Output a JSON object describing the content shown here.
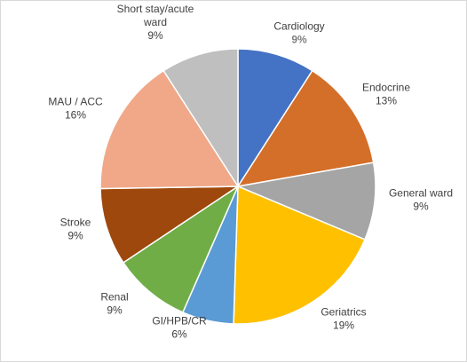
{
  "chart_data": {
    "type": "pie",
    "title": "",
    "legend": "none",
    "slices": [
      {
        "label": [
          "Cardiology"
        ],
        "pct_label": "9%",
        "value": 9,
        "color": "#4472C4"
      },
      {
        "label": [
          "Endocrine"
        ],
        "pct_label": "13%",
        "value": 13,
        "color": "#D46F2A"
      },
      {
        "label": [
          "General ward"
        ],
        "pct_label": "9%",
        "value": 9,
        "color": "#A5A5A5"
      },
      {
        "label": [
          "Geriatrics"
        ],
        "pct_label": "19%",
        "value": 19,
        "color": "#FFC000"
      },
      {
        "label": [
          "GI/HPB/CR"
        ],
        "pct_label": "6%",
        "value": 6,
        "color": "#5B9BD5"
      },
      {
        "label": [
          "Renal"
        ],
        "pct_label": "9%",
        "value": 9,
        "color": "#70AD47"
      },
      {
        "label": [
          "Stroke"
        ],
        "pct_label": "9%",
        "value": 9,
        "color": "#9E480E"
      },
      {
        "label": [
          "MAU / ACC"
        ],
        "pct_label": "16%",
        "value": 16,
        "color": "#F0A888"
      },
      {
        "label": [
          "Short stay/acute",
          "ward"
        ],
        "pct_label": "9%",
        "value": 9,
        "color": "#BFBFBF"
      }
    ]
  }
}
